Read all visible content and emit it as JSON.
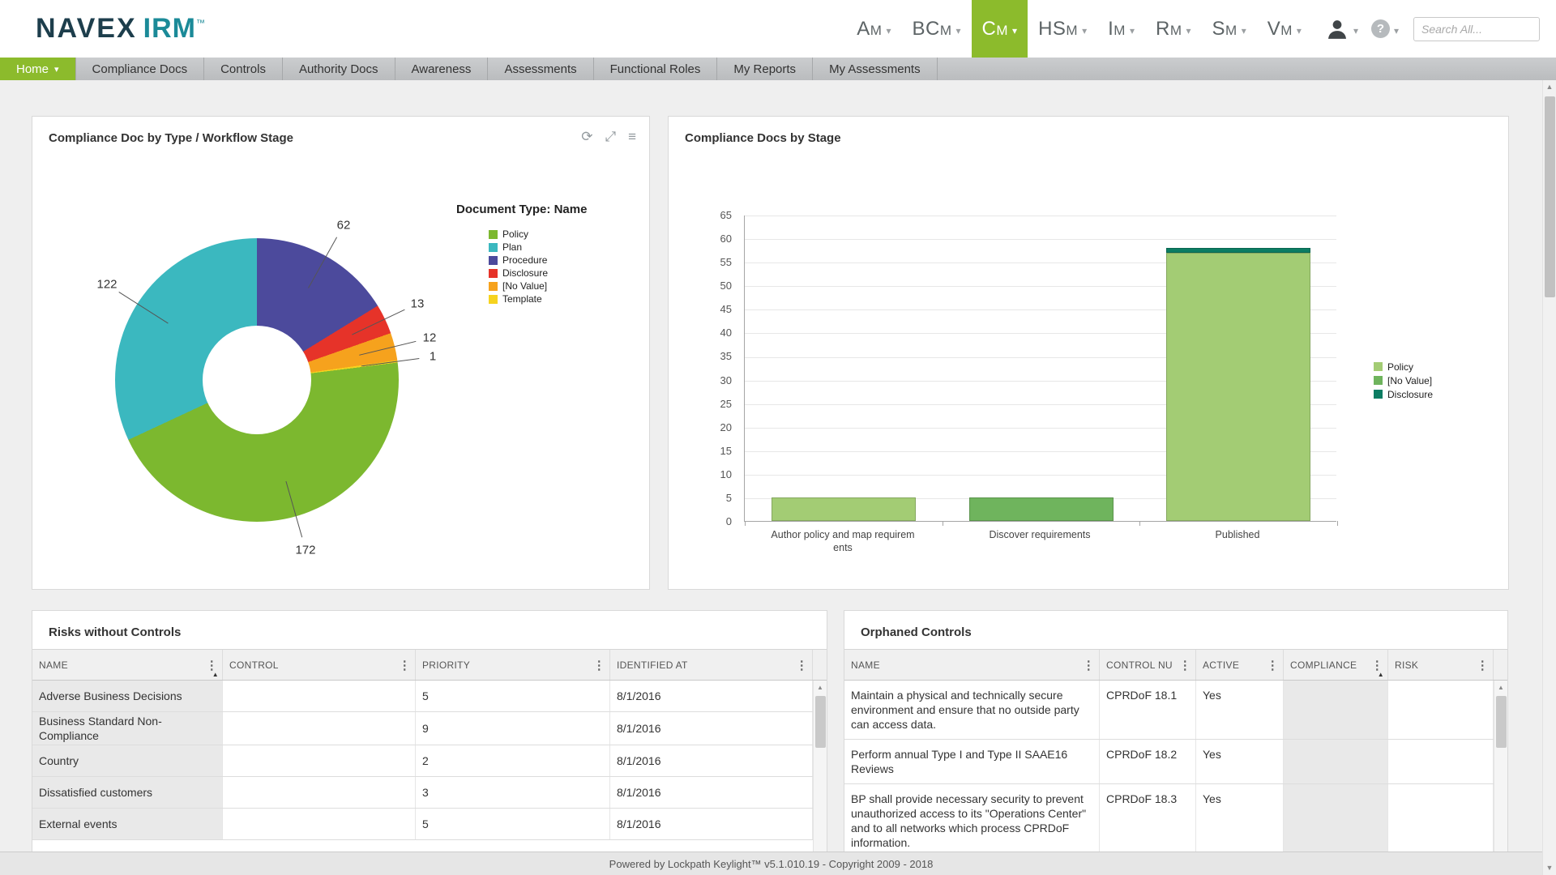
{
  "icons": {
    "caret": "▾",
    "refresh": "⟳",
    "expand": "⤢",
    "menu": "≡",
    "kebab": "⋮",
    "sort_asc": "▲",
    "scroll_up": "▲",
    "scroll_down": "▼",
    "help": "?"
  },
  "header": {
    "logo": {
      "brand": "NAVEX",
      "product": "IRM",
      "trademark": "™"
    },
    "modules": [
      {
        "label": "Am",
        "active": false
      },
      {
        "label": "BCm",
        "active": false
      },
      {
        "label": "Cm",
        "active": true
      },
      {
        "label": "HSm",
        "active": false
      },
      {
        "label": "Im",
        "active": false
      },
      {
        "label": "Rm",
        "active": false
      },
      {
        "label": "Sm",
        "active": false
      },
      {
        "label": "Vm",
        "active": false
      }
    ],
    "search": {
      "placeholder": "Search All..."
    }
  },
  "tabbar": [
    {
      "label": "Home",
      "active": true,
      "has_caret": true
    },
    {
      "label": "Compliance Docs"
    },
    {
      "label": "Controls"
    },
    {
      "label": "Authority Docs"
    },
    {
      "label": "Awareness"
    },
    {
      "label": "Assessments"
    },
    {
      "label": "Functional Roles"
    },
    {
      "label": "My Reports"
    },
    {
      "label": "My Assessments"
    }
  ],
  "panels": {
    "doc_by_type": {
      "title": "Compliance Doc by Type / Workflow Stage"
    },
    "docs_by_stage": {
      "title": "Compliance Docs by Stage"
    },
    "risks": {
      "title": "Risks without Controls",
      "columns": [
        {
          "label": "NAME",
          "field": "name",
          "sorted": "asc"
        },
        {
          "label": "CONTROL",
          "field": "control"
        },
        {
          "label": "PRIORITY",
          "field": "priority"
        },
        {
          "label": "IDENTIFIED AT",
          "field": "identified_at"
        }
      ],
      "rows": [
        {
          "name": "Adverse Business Decisions",
          "control": "",
          "priority": "5",
          "identified_at": "8/1/2016"
        },
        {
          "name": "Business Standard Non-Compliance",
          "control": "",
          "priority": "9",
          "identified_at": "8/1/2016"
        },
        {
          "name": "Country",
          "control": "",
          "priority": "2",
          "identified_at": "8/1/2016"
        },
        {
          "name": "Dissatisfied customers",
          "control": "",
          "priority": "3",
          "identified_at": "8/1/2016"
        },
        {
          "name": "External events",
          "control": "",
          "priority": "5",
          "identified_at": "8/1/2016"
        }
      ]
    },
    "orphaned": {
      "title": "Orphaned Controls",
      "columns": [
        {
          "label": "NAME",
          "field": "name"
        },
        {
          "label": "CONTROL NU",
          "field": "control_number"
        },
        {
          "label": "ACTIVE",
          "field": "active"
        },
        {
          "label": "COMPLIANCE",
          "field": "compliance",
          "sorted": "asc"
        },
        {
          "label": "RISK",
          "field": "risk"
        }
      ],
      "rows": [
        {
          "name": "Maintain a physical and technically secure environment and ensure that no outside party can access data.",
          "control_number": "CPRDoF 18.1",
          "active": "Yes",
          "compliance": "",
          "risk": ""
        },
        {
          "name": "Perform annual Type I and Type II SAAE16 Reviews",
          "control_number": "CPRDoF 18.2",
          "active": "Yes",
          "compliance": "",
          "risk": ""
        },
        {
          "name": "BP shall provide necessary security to prevent unauthorized access to its \"Operations Center\" and to all networks which process CPRDoF information.",
          "control_number": "CPRDoF 18.3",
          "active": "Yes",
          "compliance": "",
          "risk": ""
        }
      ]
    }
  },
  "chart_data": [
    {
      "type": "pie",
      "variant": "donut",
      "title": "Compliance Doc by Type / Workflow Stage",
      "legend_title": "Document Type: Name",
      "legend_position": "right",
      "data_labels": "values",
      "slices_clockwise_from_top": [
        {
          "name": "Procedure",
          "value": 62,
          "color": "#4c4a9c"
        },
        {
          "name": "Disclosure",
          "value": 13,
          "color": "#e63329"
        },
        {
          "name": "[No Value]",
          "value": 12,
          "color": "#f6a21d"
        },
        {
          "name": "Template",
          "value": 1,
          "color": "#f6d31f"
        },
        {
          "name": "Policy",
          "value": 172,
          "color": "#7cb82f"
        },
        {
          "name": "Plan",
          "value": 122,
          "color": "#3bb8bf"
        }
      ],
      "legend": [
        {
          "label": "Policy",
          "color": "#7cb82f"
        },
        {
          "label": "Plan",
          "color": "#3bb8bf"
        },
        {
          "label": "Procedure",
          "color": "#4c4a9c"
        },
        {
          "label": "Disclosure",
          "color": "#e63329"
        },
        {
          "label": "[No Value]",
          "color": "#f6a21d"
        },
        {
          "label": "Template",
          "color": "#f6d31f"
        }
      ]
    },
    {
      "type": "bar",
      "stacked": true,
      "title": "Compliance Docs by Stage",
      "categories": [
        "Author policy and map requirements",
        "Discover requirements",
        "Published"
      ],
      "category_label_lines": [
        [
          "Author policy and map requirem",
          "ents"
        ],
        [
          "Discover requirements"
        ],
        [
          "Published"
        ]
      ],
      "series": [
        {
          "name": "Policy",
          "color": "#a3cc74",
          "values": [
            5,
            0,
            57
          ]
        },
        {
          "name": "[No Value]",
          "color": "#6fb45d",
          "values": [
            0,
            5,
            0
          ]
        },
        {
          "name": "Disclosure",
          "color": "#0c7d63",
          "values": [
            0,
            0,
            1
          ]
        }
      ],
      "xlabel": "",
      "ylabel": "",
      "ylim": [
        0,
        65
      ],
      "ytick_step": 5,
      "grid": true,
      "legend_position": "right",
      "legend": [
        {
          "label": "Policy",
          "color": "#a3cc74"
        },
        {
          "label": "[No Value]",
          "color": "#6fb45d"
        },
        {
          "label": "Disclosure",
          "color": "#0c7d63"
        }
      ]
    }
  ],
  "footer": {
    "text": "Powered by Lockpath Keylight™ v5.1.010.19 - Copyright 2009 - 2018"
  }
}
